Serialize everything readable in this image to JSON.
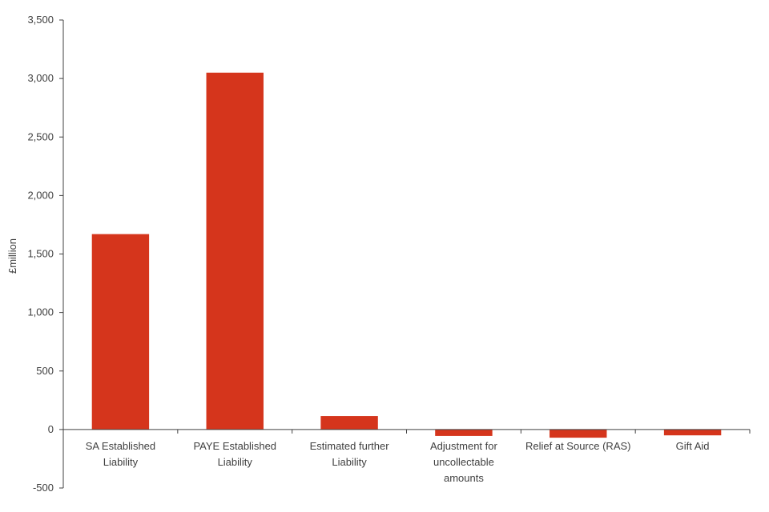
{
  "chart_data": {
    "type": "bar",
    "ylabel": "£million",
    "ylim": [
      -500,
      3500
    ],
    "yticks": [
      -500,
      0,
      500,
      1000,
      1500,
      2000,
      2500,
      3000,
      3500
    ],
    "ytick_labels": [
      "-500",
      "0",
      "500",
      "1,000",
      "1,500",
      "2,000",
      "2,500",
      "3,000",
      "3,500"
    ],
    "categories": [
      [
        "SA Established",
        "Liability"
      ],
      [
        "PAYE Established",
        "Liability"
      ],
      [
        "Estimated further",
        "Liability"
      ],
      [
        "Adjustment for",
        "uncollectable",
        "amounts"
      ],
      [
        "Relief at Source (RAS)"
      ],
      [
        "Gift Aid"
      ]
    ],
    "values": [
      1670,
      3050,
      115,
      -55,
      -70,
      -50
    ],
    "bar_color": "#d5351c",
    "grid": false,
    "legend": "none"
  }
}
